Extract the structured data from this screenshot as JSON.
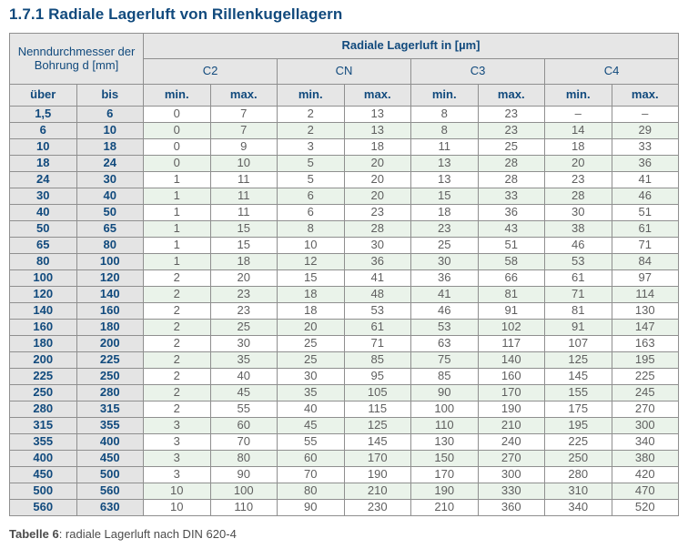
{
  "page_title": "1.7.1 Radiale Lagerluft von Rillenkugellagern",
  "table": {
    "header": {
      "group_left": "Nenndurchmesser der Bohrung d [mm]",
      "group_right": "Radiale Lagerluft in [µm]",
      "subgroups": [
        "C2",
        "CN",
        "C3",
        "C4"
      ],
      "col_ueber": "über",
      "col_bis": "bis",
      "min_label": "min.",
      "max_label": "max."
    },
    "rows": [
      {
        "ueber": "1,5",
        "bis": "6",
        "values": [
          "0",
          "7",
          "2",
          "13",
          "8",
          "23",
          "–",
          "–"
        ]
      },
      {
        "ueber": "6",
        "bis": "10",
        "values": [
          "0",
          "7",
          "2",
          "13",
          "8",
          "23",
          "14",
          "29"
        ]
      },
      {
        "ueber": "10",
        "bis": "18",
        "values": [
          "0",
          "9",
          "3",
          "18",
          "11",
          "25",
          "18",
          "33"
        ]
      },
      {
        "ueber": "18",
        "bis": "24",
        "values": [
          "0",
          "10",
          "5",
          "20",
          "13",
          "28",
          "20",
          "36"
        ]
      },
      {
        "ueber": "24",
        "bis": "30",
        "values": [
          "1",
          "11",
          "5",
          "20",
          "13",
          "28",
          "23",
          "41"
        ]
      },
      {
        "ueber": "30",
        "bis": "40",
        "values": [
          "1",
          "11",
          "6",
          "20",
          "15",
          "33",
          "28",
          "46"
        ]
      },
      {
        "ueber": "40",
        "bis": "50",
        "values": [
          "1",
          "11",
          "6",
          "23",
          "18",
          "36",
          "30",
          "51"
        ]
      },
      {
        "ueber": "50",
        "bis": "65",
        "values": [
          "1",
          "15",
          "8",
          "28",
          "23",
          "43",
          "38",
          "61"
        ]
      },
      {
        "ueber": "65",
        "bis": "80",
        "values": [
          "1",
          "15",
          "10",
          "30",
          "25",
          "51",
          "46",
          "71"
        ]
      },
      {
        "ueber": "80",
        "bis": "100",
        "values": [
          "1",
          "18",
          "12",
          "36",
          "30",
          "58",
          "53",
          "84"
        ]
      },
      {
        "ueber": "100",
        "bis": "120",
        "values": [
          "2",
          "20",
          "15",
          "41",
          "36",
          "66",
          "61",
          "97"
        ]
      },
      {
        "ueber": "120",
        "bis": "140",
        "values": [
          "2",
          "23",
          "18",
          "48",
          "41",
          "81",
          "71",
          "114"
        ]
      },
      {
        "ueber": "140",
        "bis": "160",
        "values": [
          "2",
          "23",
          "18",
          "53",
          "46",
          "91",
          "81",
          "130"
        ]
      },
      {
        "ueber": "160",
        "bis": "180",
        "values": [
          "2",
          "25",
          "20",
          "61",
          "53",
          "102",
          "91",
          "147"
        ]
      },
      {
        "ueber": "180",
        "bis": "200",
        "values": [
          "2",
          "30",
          "25",
          "71",
          "63",
          "117",
          "107",
          "163"
        ]
      },
      {
        "ueber": "200",
        "bis": "225",
        "values": [
          "2",
          "35",
          "25",
          "85",
          "75",
          "140",
          "125",
          "195"
        ]
      },
      {
        "ueber": "225",
        "bis": "250",
        "values": [
          "2",
          "40",
          "30",
          "95",
          "85",
          "160",
          "145",
          "225"
        ]
      },
      {
        "ueber": "250",
        "bis": "280",
        "values": [
          "2",
          "45",
          "35",
          "105",
          "90",
          "170",
          "155",
          "245"
        ]
      },
      {
        "ueber": "280",
        "bis": "315",
        "values": [
          "2",
          "55",
          "40",
          "115",
          "100",
          "190",
          "175",
          "270"
        ]
      },
      {
        "ueber": "315",
        "bis": "355",
        "values": [
          "3",
          "60",
          "45",
          "125",
          "110",
          "210",
          "195",
          "300"
        ]
      },
      {
        "ueber": "355",
        "bis": "400",
        "values": [
          "3",
          "70",
          "55",
          "145",
          "130",
          "240",
          "225",
          "340"
        ]
      },
      {
        "ueber": "400",
        "bis": "450",
        "values": [
          "3",
          "80",
          "60",
          "170",
          "150",
          "270",
          "250",
          "380"
        ]
      },
      {
        "ueber": "450",
        "bis": "500",
        "values": [
          "3",
          "90",
          "70",
          "190",
          "170",
          "300",
          "280",
          "420"
        ]
      },
      {
        "ueber": "500",
        "bis": "560",
        "values": [
          "10",
          "100",
          "80",
          "210",
          "190",
          "330",
          "310",
          "470"
        ]
      },
      {
        "ueber": "560",
        "bis": "630",
        "values": [
          "10",
          "110",
          "90",
          "230",
          "210",
          "360",
          "340",
          "520"
        ]
      }
    ]
  },
  "caption": {
    "label": "Tabelle 6",
    "text": ": radiale Lagerluft nach DIN 620-4"
  },
  "colors": {
    "heading_blue": "#114a7d",
    "row_stripe_green": "#eaf3ea",
    "dim_column_gray": "#e4e4e4",
    "header_gray": "#e6e6e6",
    "border_gray": "#8f8f8f",
    "value_text_gray": "#5f5f5f"
  }
}
